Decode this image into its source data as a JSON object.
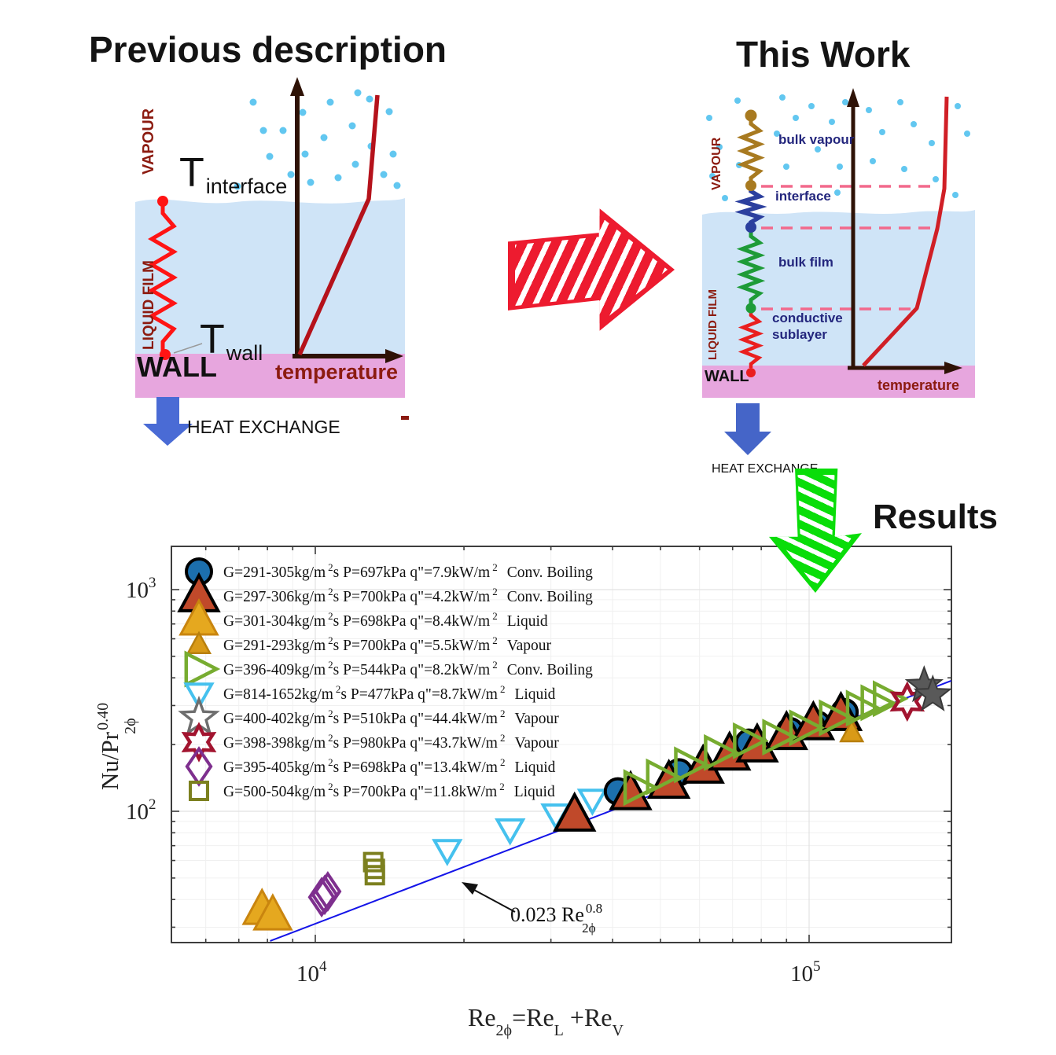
{
  "titles": {
    "previous": "Previous description",
    "this_work": "This Work",
    "results": "Results"
  },
  "left_diagram": {
    "vapour_label": "VAPOUR",
    "liquid_label": "LIQUID FILM",
    "wall_label": "WALL",
    "temperature_label": "temperature",
    "heat_exchange_label": "HEAT EXCHANGE",
    "t_interface_symbol": "T",
    "t_interface_sub": "interface",
    "t_wall_symbol": "T",
    "t_wall_sub": "wall"
  },
  "right_diagram": {
    "vapour_label": "VAPOUR",
    "liquid_label": "LIQUID FILM",
    "wall_label": "WALL",
    "temperature_label": "temperature",
    "heat_exchange_label": "HEAT EXCHANGE",
    "layers": [
      "bulk vapour",
      "interface",
      "bulk film",
      "conductive sublayer"
    ]
  },
  "colors": {
    "liquid_fill": "#cfe4f7",
    "wall_fill": "#e7a6de",
    "vapour_dot": "#62c7f0",
    "resistor_red": "#ff1414",
    "resistor_brown": "#a87a20",
    "resistor_navy": "#2b3f9e",
    "resistor_green": "#1e9b38",
    "profile_red": "#b5121b",
    "axis_brown": "#2e1206",
    "heat_arrow_blue": "#4a6bd5",
    "dashed_pink": "#f2698c",
    "sketch_red": "#ed1b2f",
    "sketch_green": "#09dd09",
    "fit_line_blue": "#1414e8"
  },
  "chart_data": {
    "type": "scatter",
    "scale": "log-log",
    "grid": "minor",
    "xlim": [
      5100,
      195000
    ],
    "ylim": [
      25,
      1570
    ],
    "xlabel_parts": [
      {
        "t": "Re"
      },
      {
        "sub": "2ϕ"
      },
      {
        "t": "=Re"
      },
      {
        "sub": "L"
      },
      {
        "t": " +Re"
      },
      {
        "sub": "V"
      }
    ],
    "ylabel_parts": {
      "main": "Nu/Pr",
      "sup": "0.40",
      "sub": "2ϕ"
    },
    "xtick_labels": [
      {
        "base": "10",
        "exp": "4"
      },
      {
        "base": "10",
        "exp": "5"
      }
    ],
    "ytick_labels": [
      {
        "base": "10",
        "exp": "3"
      },
      {
        "base": "10",
        "exp": "2"
      }
    ],
    "axes": {
      "xticks_major": [
        10000,
        100000
      ],
      "xticks_minor": [
        6000,
        7000,
        8000,
        9000,
        20000,
        30000,
        40000,
        50000,
        60000,
        70000,
        80000,
        90000
      ],
      "yticks_major": [
        1000,
        100
      ],
      "yticks_minor": [
        30,
        40,
        50,
        60,
        70,
        80,
        90,
        200,
        300,
        400,
        500,
        600,
        700,
        800,
        900
      ],
      "legend_position": "upper-left-inside"
    },
    "fit_line": {
      "label": "0.023 Re_2ϕ^0.8",
      "coefficient": 0.023,
      "exponent": 0.8,
      "points": [
        [
          8100,
          26
        ],
        [
          194000,
          388
        ]
      ]
    },
    "annotation": {
      "text": "0.023 Re",
      "sup": "0.8",
      "sub": "2ϕ"
    },
    "series": [
      {
        "text1": "G=291-305kg/m",
        "sup1": "2",
        "text2": "s P=697kPa q\"=7.9kW/m",
        "sup2": "2",
        "text3": "Conv. Boiling",
        "marker": "circle",
        "size": 32,
        "fill": "#1c6fad",
        "stroke": "#000000",
        "stroke_width": 4,
        "points": [
          [
            41000,
            123
          ],
          [
            54500,
            150
          ],
          [
            75500,
            204
          ],
          [
            91500,
            230
          ],
          [
            104000,
            246
          ],
          [
            118000,
            280
          ]
        ]
      },
      {
        "text1": "G=297-306kg/m",
        "sup1": "2",
        "text2": "s P=700kPa q\"=4.2kW/m",
        "sup2": "2",
        "text3": "Conv. Boiling",
        "marker": "tri-up",
        "size": 42,
        "fill": "#c0492a",
        "stroke": "#000000",
        "stroke_width": 4,
        "points": [
          [
            33500,
            96
          ],
          [
            43500,
            120
          ],
          [
            52000,
            135
          ],
          [
            61000,
            158
          ],
          [
            69000,
            181
          ],
          [
            78500,
            197
          ],
          [
            90000,
            224
          ],
          [
            102000,
            248
          ],
          [
            116000,
            273
          ]
        ]
      },
      {
        "text1": "G=301-304kg/m",
        "sup1": "2",
        "text2": "s P=698kPa q\"=8.4kW/m",
        "sup2": "2",
        "text3": "Liquid",
        "marker": "tri-up",
        "size": 40,
        "fill": "#e5a81f",
        "stroke": "#c9850f",
        "stroke_width": 3,
        "points": [
          [
            7800,
            36
          ],
          [
            8200,
            34
          ]
        ]
      },
      {
        "text1": "G=291-293kg/m",
        "sup1": "2",
        "text2": "s P=700kPa q\"=5.5kW/m",
        "sup2": "2",
        "text3": "Vapour",
        "marker": "tri-up",
        "size": 24,
        "fill": "#d99a17",
        "stroke": "#b87f0d",
        "stroke_width": 2.5,
        "points": [
          [
            122000,
            226
          ]
        ]
      },
      {
        "text1": "G=396-409kg/m",
        "sup1": "2",
        "text2": "s P=544kPa q\"=8.2kW/m",
        "sup2": "2",
        "text3": "Conv. Boiling",
        "marker": "tri-right",
        "size": 36,
        "fill": "none",
        "stroke": "#77ac30",
        "stroke_width": 4.5,
        "points": [
          [
            45000,
            128
          ],
          [
            50000,
            143
          ],
          [
            57000,
            162
          ],
          [
            65500,
            184
          ],
          [
            75000,
            208
          ],
          [
            86000,
            216
          ],
          [
            97500,
            238
          ],
          [
            112000,
            264
          ],
          [
            127000,
            292
          ],
          [
            136000,
            309
          ],
          [
            144000,
            322
          ]
        ]
      },
      {
        "text1": "G=814-1652kg/m",
        "sup1": "2",
        "text2": "s P=477kPa q\"=8.7kW/m",
        "sup2": "2",
        "text3": "Liquid",
        "marker": "tri-down",
        "size": 28,
        "fill": "none",
        "stroke": "#45c1ee",
        "stroke_width": 4,
        "points": [
          [
            18500,
            67
          ],
          [
            24800,
            83
          ],
          [
            30700,
            97
          ],
          [
            36400,
            113
          ]
        ]
      },
      {
        "text1": "G=400-402kg/m",
        "sup1": "2",
        "text2": "s P=510kPa q\"=44.4kW/m",
        "sup2": "2",
        "text3": "Vapour",
        "marker": "star5",
        "size": 42,
        "fill": "#595959",
        "stroke": "#3a3a3a",
        "stroke_width": 2,
        "legend_fill": "#ffffff",
        "legend_stroke": "#6e6e6e",
        "legend_stroke_width": 3.5,
        "points": [
          [
            171000,
            369
          ],
          [
            178000,
            335
          ]
        ]
      },
      {
        "text1": "G=398-398kg/m",
        "sup1": "2",
        "text2": "s P=980kPa q\"=43.7kW/m",
        "sup2": "2",
        "text3": "Vapour",
        "marker": "star6",
        "size": 38,
        "fill": "none",
        "stroke": "#a2142f",
        "stroke_width": 4.5,
        "points": [
          [
            158000,
            313
          ]
        ]
      },
      {
        "text1": "G=395-405kg/m",
        "sup1": "2",
        "text2": "s P=698kPa q\"=13.4kW/m",
        "sup2": "2",
        "text3": "Liquid",
        "marker": "diamond",
        "size": 36,
        "fill": "none",
        "stroke": "#7e2f8e",
        "stroke_width": 4,
        "points": [
          [
            10300,
            41
          ],
          [
            10600,
            43.5
          ],
          [
            10450,
            42
          ]
        ]
      },
      {
        "text1": "G=500-504kg/m",
        "sup1": "2",
        "text2": "s P=700kPa q\"=11.8kW/m",
        "sup2": "2",
        "text3": "Liquid",
        "marker": "square",
        "size": 22,
        "fill": "none",
        "stroke": "#7c801f",
        "stroke_width": 4,
        "points": [
          [
            13100,
            59
          ],
          [
            13200,
            55
          ],
          [
            13200,
            51.5
          ]
        ]
      }
    ],
    "draw_order": [
      2,
      8,
      9,
      5,
      0,
      1,
      3,
      4,
      7,
      6
    ]
  }
}
